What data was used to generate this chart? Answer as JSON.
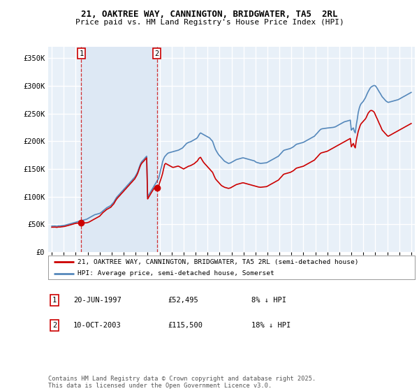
{
  "title_line1": "21, OAKTREE WAY, CANNINGTON, BRIDGWATER, TA5  2RL",
  "title_line2": "Price paid vs. HM Land Registry's House Price Index (HPI)",
  "legend_label1": "21, OAKTREE WAY, CANNINGTON, BRIDGWATER, TA5 2RL (semi-detached house)",
  "legend_label2": "HPI: Average price, semi-detached house, Somerset",
  "footnote": "Contains HM Land Registry data © Crown copyright and database right 2025.\nThis data is licensed under the Open Government Licence v3.0.",
  "annotation1_label": "1",
  "annotation1_date": "20-JUN-1997",
  "annotation1_price": "£52,495",
  "annotation1_hpi": "8% ↓ HPI",
  "annotation2_label": "2",
  "annotation2_date": "10-OCT-2003",
  "annotation2_price": "£115,500",
  "annotation2_hpi": "18% ↓ HPI",
  "red_color": "#cc0000",
  "blue_color": "#5588bb",
  "shade_color": "#dde8f4",
  "bg_color": "#e8f0f8",
  "grid_color": "#ffffff",
  "ylabel_values": [
    0,
    50000,
    100000,
    150000,
    200000,
    250000,
    300000,
    350000
  ],
  "ylabel_labels": [
    "£0",
    "£50K",
    "£100K",
    "£150K",
    "£200K",
    "£250K",
    "£300K",
    "£350K"
  ],
  "x_start_year": 1995,
  "x_end_year": 2025,
  "sale1_year": 1997.46,
  "sale1_price": 52495,
  "sale2_year": 2003.77,
  "sale2_price": 115500,
  "hpi_x": [
    1995.0,
    1995.08,
    1995.17,
    1995.25,
    1995.33,
    1995.42,
    1995.5,
    1995.58,
    1995.67,
    1995.75,
    1995.83,
    1995.92,
    1996.0,
    1996.08,
    1996.17,
    1996.25,
    1996.33,
    1996.42,
    1996.5,
    1996.58,
    1996.67,
    1996.75,
    1996.83,
    1996.92,
    1997.0,
    1997.08,
    1997.17,
    1997.25,
    1997.33,
    1997.42,
    1997.5,
    1997.58,
    1997.67,
    1997.75,
    1997.83,
    1997.92,
    1998.0,
    1998.08,
    1998.17,
    1998.25,
    1998.33,
    1998.42,
    1998.5,
    1998.58,
    1998.67,
    1998.75,
    1998.83,
    1998.92,
    1999.0,
    1999.08,
    1999.17,
    1999.25,
    1999.33,
    1999.42,
    1999.5,
    1999.58,
    1999.67,
    1999.75,
    1999.83,
    1999.92,
    2000.0,
    2000.08,
    2000.17,
    2000.25,
    2000.33,
    2000.42,
    2000.5,
    2000.58,
    2000.67,
    2000.75,
    2000.83,
    2000.92,
    2001.0,
    2001.08,
    2001.17,
    2001.25,
    2001.33,
    2001.42,
    2001.5,
    2001.58,
    2001.67,
    2001.75,
    2001.83,
    2001.92,
    2002.0,
    2002.08,
    2002.17,
    2002.25,
    2002.33,
    2002.42,
    2002.5,
    2002.58,
    2002.67,
    2002.75,
    2002.83,
    2002.92,
    2003.0,
    2003.08,
    2003.17,
    2003.25,
    2003.33,
    2003.42,
    2003.5,
    2003.58,
    2003.67,
    2003.75,
    2003.83,
    2003.92,
    2004.0,
    2004.08,
    2004.17,
    2004.25,
    2004.33,
    2004.42,
    2004.5,
    2004.58,
    2004.67,
    2004.75,
    2004.83,
    2004.92,
    2005.0,
    2005.08,
    2005.17,
    2005.25,
    2005.33,
    2005.42,
    2005.5,
    2005.58,
    2005.67,
    2005.75,
    2005.83,
    2005.92,
    2006.0,
    2006.08,
    2006.17,
    2006.25,
    2006.33,
    2006.42,
    2006.5,
    2006.58,
    2006.67,
    2006.75,
    2006.83,
    2006.92,
    2007.0,
    2007.08,
    2007.17,
    2007.25,
    2007.33,
    2007.42,
    2007.5,
    2007.58,
    2007.67,
    2007.75,
    2007.83,
    2007.92,
    2008.0,
    2008.08,
    2008.17,
    2008.25,
    2008.33,
    2008.42,
    2008.5,
    2008.58,
    2008.67,
    2008.75,
    2008.83,
    2008.92,
    2009.0,
    2009.08,
    2009.17,
    2009.25,
    2009.33,
    2009.42,
    2009.5,
    2009.58,
    2009.67,
    2009.75,
    2009.83,
    2009.92,
    2010.0,
    2010.08,
    2010.17,
    2010.25,
    2010.33,
    2010.42,
    2010.5,
    2010.58,
    2010.67,
    2010.75,
    2010.83,
    2010.92,
    2011.0,
    2011.08,
    2011.17,
    2011.25,
    2011.33,
    2011.42,
    2011.5,
    2011.58,
    2011.67,
    2011.75,
    2011.83,
    2011.92,
    2012.0,
    2012.08,
    2012.17,
    2012.25,
    2012.33,
    2012.42,
    2012.5,
    2012.58,
    2012.67,
    2012.75,
    2012.83,
    2012.92,
    2013.0,
    2013.08,
    2013.17,
    2013.25,
    2013.33,
    2013.42,
    2013.5,
    2013.58,
    2013.67,
    2013.75,
    2013.83,
    2013.92,
    2014.0,
    2014.08,
    2014.17,
    2014.25,
    2014.33,
    2014.42,
    2014.5,
    2014.58,
    2014.67,
    2014.75,
    2014.83,
    2014.92,
    2015.0,
    2015.08,
    2015.17,
    2015.25,
    2015.33,
    2015.42,
    2015.5,
    2015.58,
    2015.67,
    2015.75,
    2015.83,
    2015.92,
    2016.0,
    2016.08,
    2016.17,
    2016.25,
    2016.33,
    2016.42,
    2016.5,
    2016.58,
    2016.67,
    2016.75,
    2016.83,
    2016.92,
    2017.0,
    2017.08,
    2017.17,
    2017.25,
    2017.33,
    2017.42,
    2017.5,
    2017.58,
    2017.67,
    2017.75,
    2017.83,
    2017.92,
    2018.0,
    2018.08,
    2018.17,
    2018.25,
    2018.33,
    2018.42,
    2018.5,
    2018.58,
    2018.67,
    2018.75,
    2018.83,
    2018.92,
    2019.0,
    2019.08,
    2019.17,
    2019.25,
    2019.33,
    2019.42,
    2019.5,
    2019.58,
    2019.67,
    2019.75,
    2019.83,
    2019.92,
    2020.0,
    2020.08,
    2020.17,
    2020.25,
    2020.33,
    2020.42,
    2020.5,
    2020.58,
    2020.67,
    2020.75,
    2020.83,
    2020.92,
    2021.0,
    2021.08,
    2021.17,
    2021.25,
    2021.33,
    2021.42,
    2021.5,
    2021.58,
    2021.67,
    2021.75,
    2021.83,
    2021.92,
    2022.0,
    2022.08,
    2022.17,
    2022.25,
    2022.33,
    2022.42,
    2022.5,
    2022.58,
    2022.67,
    2022.75,
    2022.83,
    2022.92,
    2023.0,
    2023.08,
    2023.17,
    2023.25,
    2023.33,
    2023.42,
    2023.5,
    2023.58,
    2023.67,
    2023.75,
    2023.83,
    2023.92,
    2024.0,
    2024.08,
    2024.17,
    2024.25,
    2024.33,
    2024.42,
    2024.5,
    2024.58,
    2024.67,
    2024.75,
    2024.83,
    2024.92,
    2025.0
  ],
  "hpi_y": [
    47000,
    47200,
    47100,
    47300,
    47000,
    46800,
    47200,
    47500,
    47300,
    47600,
    47800,
    48000,
    48200,
    48500,
    49000,
    49500,
    50000,
    50500,
    51000,
    51500,
    52000,
    52500,
    53000,
    53500,
    54000,
    54500,
    55000,
    55500,
    56000,
    56500,
    57000,
    57500,
    58000,
    58500,
    59000,
    59500,
    60500,
    61500,
    62500,
    63500,
    64500,
    65500,
    66500,
    67500,
    68000,
    68500,
    69000,
    69500,
    70000,
    71000,
    72500,
    74000,
    75500,
    77000,
    78500,
    80000,
    81000,
    82000,
    83000,
    84000,
    86000,
    88000,
    90000,
    93000,
    96000,
    99000,
    101000,
    103000,
    105000,
    107000,
    109000,
    111000,
    113000,
    115000,
    117000,
    119000,
    121000,
    123000,
    125000,
    127000,
    129000,
    131000,
    133000,
    135000,
    138000,
    141000,
    145000,
    150000,
    155000,
    160000,
    163000,
    165000,
    167000,
    169000,
    171000,
    173000,
    100000,
    103000,
    106000,
    109000,
    112000,
    115000,
    118000,
    121000,
    124000,
    127000,
    130000,
    133000,
    140000,
    148000,
    155000,
    163000,
    168000,
    172000,
    174000,
    176000,
    178000,
    179000,
    179500,
    180000,
    180500,
    181000,
    181500,
    182000,
    182500,
    183000,
    183500,
    184000,
    185000,
    186000,
    187000,
    188000,
    190000,
    192000,
    194000,
    196000,
    197000,
    198000,
    198500,
    199000,
    200000,
    201000,
    202000,
    203000,
    204000,
    205000,
    207000,
    210000,
    213000,
    215000,
    214000,
    213000,
    212000,
    211000,
    210000,
    209000,
    208000,
    207000,
    206000,
    204000,
    202000,
    200000,
    195000,
    190000,
    185000,
    182000,
    179000,
    176000,
    174000,
    172000,
    170000,
    168000,
    166000,
    164000,
    163000,
    162000,
    161000,
    160000,
    160500,
    161000,
    162000,
    163000,
    164000,
    165000,
    166000,
    167000,
    167500,
    168000,
    168500,
    169000,
    169500,
    170000,
    170000,
    169500,
    169000,
    168500,
    168000,
    167500,
    167000,
    166500,
    166000,
    165500,
    165000,
    164500,
    163000,
    162000,
    161500,
    161000,
    160500,
    160000,
    160200,
    160400,
    160600,
    160800,
    161000,
    161200,
    162000,
    163000,
    164000,
    165000,
    166000,
    167000,
    168000,
    169000,
    170000,
    171000,
    172000,
    173000,
    175000,
    177000,
    179000,
    181000,
    183000,
    184000,
    184500,
    185000,
    185500,
    186000,
    186500,
    187000,
    188000,
    189000,
    190000,
    191500,
    193000,
    194500,
    195000,
    195500,
    196000,
    196500,
    197000,
    197500,
    198000,
    199000,
    200000,
    201000,
    202000,
    203000,
    204000,
    205000,
    206000,
    207000,
    208000,
    209000,
    211000,
    213000,
    215000,
    217000,
    219000,
    221000,
    222000,
    222500,
    222800,
    223000,
    223200,
    223500,
    223800,
    224000,
    224200,
    224400,
    224600,
    224800,
    225000,
    225500,
    226000,
    227000,
    228000,
    229000,
    230000,
    231000,
    232000,
    233000,
    234000,
    235000,
    235500,
    236000,
    236500,
    237000,
    237500,
    238000,
    220000,
    222000,
    224000,
    218000,
    215000,
    230000,
    240000,
    252000,
    260000,
    265000,
    268000,
    270000,
    272000,
    275000,
    278000,
    282000,
    286000,
    290000,
    293000,
    296000,
    298000,
    299000,
    300000,
    300500,
    300000,
    298000,
    295000,
    292000,
    289000,
    286000,
    283000,
    280000,
    278000,
    276000,
    274000,
    272000,
    271000,
    270000,
    270500,
    271000,
    271500,
    272000,
    272500,
    273000,
    273500,
    274000,
    274500,
    275000,
    276000,
    277000,
    278000,
    279000,
    280000,
    281000,
    282000,
    283000,
    284000,
    285000,
    286000,
    287000,
    288000
  ],
  "red_x": [
    1995.0,
    1995.08,
    1995.17,
    1995.25,
    1995.33,
    1995.42,
    1995.5,
    1995.58,
    1995.67,
    1995.75,
    1995.83,
    1995.92,
    1996.0,
    1996.08,
    1996.17,
    1996.25,
    1996.33,
    1996.42,
    1996.5,
    1996.58,
    1996.67,
    1996.75,
    1996.83,
    1996.92,
    1997.0,
    1997.08,
    1997.17,
    1997.25,
    1997.33,
    1997.42,
    1997.46,
    1997.5,
    1997.58,
    1997.67,
    1997.75,
    1997.83,
    1997.92,
    1998.0,
    1998.08,
    1998.17,
    1998.25,
    1998.33,
    1998.42,
    1998.5,
    1998.58,
    1998.67,
    1998.75,
    1998.83,
    1998.92,
    1999.0,
    1999.08,
    1999.17,
    1999.25,
    1999.33,
    1999.42,
    1999.5,
    1999.58,
    1999.67,
    1999.75,
    1999.83,
    1999.92,
    2000.0,
    2000.08,
    2000.17,
    2000.25,
    2000.33,
    2000.42,
    2000.5,
    2000.58,
    2000.67,
    2000.75,
    2000.83,
    2000.92,
    2001.0,
    2001.08,
    2001.17,
    2001.25,
    2001.33,
    2001.42,
    2001.5,
    2001.58,
    2001.67,
    2001.75,
    2001.83,
    2001.92,
    2002.0,
    2002.08,
    2002.17,
    2002.25,
    2002.33,
    2002.42,
    2002.5,
    2002.58,
    2002.67,
    2002.75,
    2002.83,
    2002.92,
    2003.0,
    2003.08,
    2003.17,
    2003.25,
    2003.33,
    2003.42,
    2003.5,
    2003.58,
    2003.67,
    2003.75,
    2003.77,
    2003.83,
    2003.92,
    2004.0,
    2004.08,
    2004.17,
    2004.25,
    2004.33,
    2004.42,
    2004.5,
    2004.58,
    2004.67,
    2004.75,
    2004.83,
    2004.92,
    2005.0,
    2005.08,
    2005.17,
    2005.25,
    2005.33,
    2005.42,
    2005.5,
    2005.58,
    2005.67,
    2005.75,
    2005.83,
    2005.92,
    2006.0,
    2006.08,
    2006.17,
    2006.25,
    2006.33,
    2006.42,
    2006.5,
    2006.58,
    2006.67,
    2006.75,
    2006.83,
    2006.92,
    2007.0,
    2007.08,
    2007.17,
    2007.25,
    2007.33,
    2007.42,
    2007.5,
    2007.58,
    2007.67,
    2007.75,
    2007.83,
    2007.92,
    2008.0,
    2008.08,
    2008.17,
    2008.25,
    2008.33,
    2008.42,
    2008.5,
    2008.58,
    2008.67,
    2008.75,
    2008.83,
    2008.92,
    2009.0,
    2009.08,
    2009.17,
    2009.25,
    2009.33,
    2009.42,
    2009.5,
    2009.58,
    2009.67,
    2009.75,
    2009.83,
    2009.92,
    2010.0,
    2010.08,
    2010.17,
    2010.25,
    2010.33,
    2010.42,
    2010.5,
    2010.58,
    2010.67,
    2010.75,
    2010.83,
    2010.92,
    2011.0,
    2011.08,
    2011.17,
    2011.25,
    2011.33,
    2011.42,
    2011.5,
    2011.58,
    2011.67,
    2011.75,
    2011.83,
    2011.92,
    2012.0,
    2012.08,
    2012.17,
    2012.25,
    2012.33,
    2012.42,
    2012.5,
    2012.58,
    2012.67,
    2012.75,
    2012.83,
    2012.92,
    2013.0,
    2013.08,
    2013.17,
    2013.25,
    2013.33,
    2013.42,
    2013.5,
    2013.58,
    2013.67,
    2013.75,
    2013.83,
    2013.92,
    2014.0,
    2014.08,
    2014.17,
    2014.25,
    2014.33,
    2014.42,
    2014.5,
    2014.58,
    2014.67,
    2014.75,
    2014.83,
    2014.92,
    2015.0,
    2015.08,
    2015.17,
    2015.25,
    2015.33,
    2015.42,
    2015.5,
    2015.58,
    2015.67,
    2015.75,
    2015.83,
    2015.92,
    2016.0,
    2016.08,
    2016.17,
    2016.25,
    2016.33,
    2016.42,
    2016.5,
    2016.58,
    2016.67,
    2016.75,
    2016.83,
    2016.92,
    2017.0,
    2017.08,
    2017.17,
    2017.25,
    2017.33,
    2017.42,
    2017.5,
    2017.58,
    2017.67,
    2017.75,
    2017.83,
    2017.92,
    2018.0,
    2018.08,
    2018.17,
    2018.25,
    2018.33,
    2018.42,
    2018.5,
    2018.58,
    2018.67,
    2018.75,
    2018.83,
    2018.92,
    2019.0,
    2019.08,
    2019.17,
    2019.25,
    2019.33,
    2019.42,
    2019.5,
    2019.58,
    2019.67,
    2019.75,
    2019.83,
    2019.92,
    2020.0,
    2020.08,
    2020.17,
    2020.25,
    2020.33,
    2020.42,
    2020.5,
    2020.58,
    2020.67,
    2020.75,
    2020.83,
    2020.92,
    2021.0,
    2021.08,
    2021.17,
    2021.25,
    2021.33,
    2021.42,
    2021.5,
    2021.58,
    2021.67,
    2021.75,
    2021.83,
    2021.92,
    2022.0,
    2022.08,
    2022.17,
    2022.25,
    2022.33,
    2022.42,
    2022.5,
    2022.58,
    2022.67,
    2022.75,
    2022.83,
    2022.92,
    2023.0,
    2023.08,
    2023.17,
    2023.25,
    2023.33,
    2023.42,
    2023.5,
    2023.58,
    2023.67,
    2023.75,
    2023.83,
    2023.92,
    2024.0,
    2024.08,
    2024.17,
    2024.25,
    2024.33,
    2024.42,
    2024.5,
    2024.58,
    2024.67,
    2024.75,
    2024.83,
    2024.92,
    2025.0
  ],
  "red_y": [
    45000,
    45200,
    45100,
    45300,
    45000,
    44800,
    45200,
    45500,
    45300,
    45600,
    45800,
    46000,
    46200,
    46500,
    47000,
    47500,
    48000,
    48500,
    49000,
    49500,
    50000,
    50500,
    51000,
    51500,
    52000,
    52200,
    52400,
    52300,
    52200,
    52400,
    52495,
    52500,
    52600,
    52700,
    52800,
    52900,
    53000,
    53500,
    54000,
    55000,
    56000,
    57000,
    58000,
    59000,
    60000,
    61000,
    62000,
    63000,
    64000,
    65000,
    67000,
    69000,
    71000,
    72500,
    74000,
    75500,
    77000,
    78000,
    79000,
    80000,
    81000,
    83000,
    85000,
    87000,
    90000,
    93000,
    96000,
    98000,
    100000,
    102000,
    104000,
    106000,
    108000,
    110000,
    112000,
    114000,
    116000,
    118000,
    120000,
    122000,
    124000,
    126000,
    128000,
    130000,
    132000,
    135000,
    138000,
    142000,
    147000,
    152000,
    157000,
    160000,
    162000,
    164000,
    166000,
    168000,
    170000,
    96000,
    99000,
    102000,
    105000,
    108000,
    111000,
    114000,
    116000,
    117000,
    115500,
    115500,
    117000,
    119000,
    125000,
    130000,
    136000,
    142000,
    150000,
    158000,
    160000,
    159000,
    158000,
    157000,
    156000,
    155000,
    154000,
    153000,
    153000,
    153500,
    154000,
    154500,
    155000,
    155000,
    154000,
    153000,
    152000,
    151000,
    150000,
    151000,
    152000,
    153000,
    154000,
    155000,
    155500,
    156000,
    157000,
    158000,
    159000,
    160000,
    162000,
    163000,
    165000,
    168000,
    170000,
    171000,
    168000,
    165000,
    162000,
    160000,
    158000,
    156000,
    154000,
    152000,
    150000,
    148000,
    146000,
    144000,
    140000,
    136000,
    132000,
    130000,
    128000,
    126000,
    124000,
    122000,
    120000,
    119000,
    118000,
    117000,
    116500,
    116000,
    115500,
    115000,
    115500,
    116000,
    117000,
    118000,
    119000,
    120000,
    121000,
    122000,
    122500,
    123000,
    123500,
    124000,
    124500,
    125000,
    125000,
    124500,
    124000,
    123500,
    123000,
    122500,
    122000,
    121500,
    121000,
    120500,
    120000,
    119500,
    119000,
    118500,
    118000,
    117500,
    117200,
    117000,
    117200,
    117400,
    117600,
    117800,
    118000,
    118200,
    119000,
    120000,
    121000,
    122000,
    123000,
    124000,
    125000,
    126000,
    127000,
    128000,
    129000,
    130000,
    132000,
    134000,
    136000,
    138000,
    140000,
    141000,
    141500,
    142000,
    142500,
    143000,
    143500,
    144000,
    145000,
    146000,
    147000,
    148500,
    150000,
    151500,
    152000,
    152500,
    153000,
    153500,
    154000,
    154500,
    155000,
    156000,
    157000,
    158000,
    159000,
    160000,
    161000,
    162000,
    163000,
    164000,
    165000,
    166000,
    168000,
    170000,
    172000,
    174000,
    176000,
    178000,
    179000,
    179500,
    180000,
    180500,
    181000,
    181500,
    182000,
    183000,
    184000,
    185000,
    186000,
    187000,
    188000,
    189000,
    190000,
    191000,
    192000,
    193000,
    194000,
    195000,
    196000,
    197000,
    198000,
    199000,
    200000,
    201000,
    202000,
    203000,
    204000,
    205000,
    190000,
    193000,
    196000,
    191000,
    188000,
    202000,
    210000,
    218000,
    224000,
    229000,
    232000,
    234000,
    236000,
    238000,
    240000,
    243000,
    247000,
    251000,
    253000,
    255000,
    255500,
    255000,
    254000,
    252000,
    248000,
    244000,
    240000,
    236000,
    232000,
    228000,
    224000,
    220000,
    218000,
    216000,
    214000,
    212000,
    210000,
    209000,
    210000,
    211000,
    212000,
    213000,
    214000,
    215000,
    216000,
    217000,
    218000,
    219000,
    220000,
    221000,
    222000,
    223000,
    224000,
    225000,
    226000,
    227000,
    228000,
    229000,
    230000,
    231000,
    232000
  ]
}
